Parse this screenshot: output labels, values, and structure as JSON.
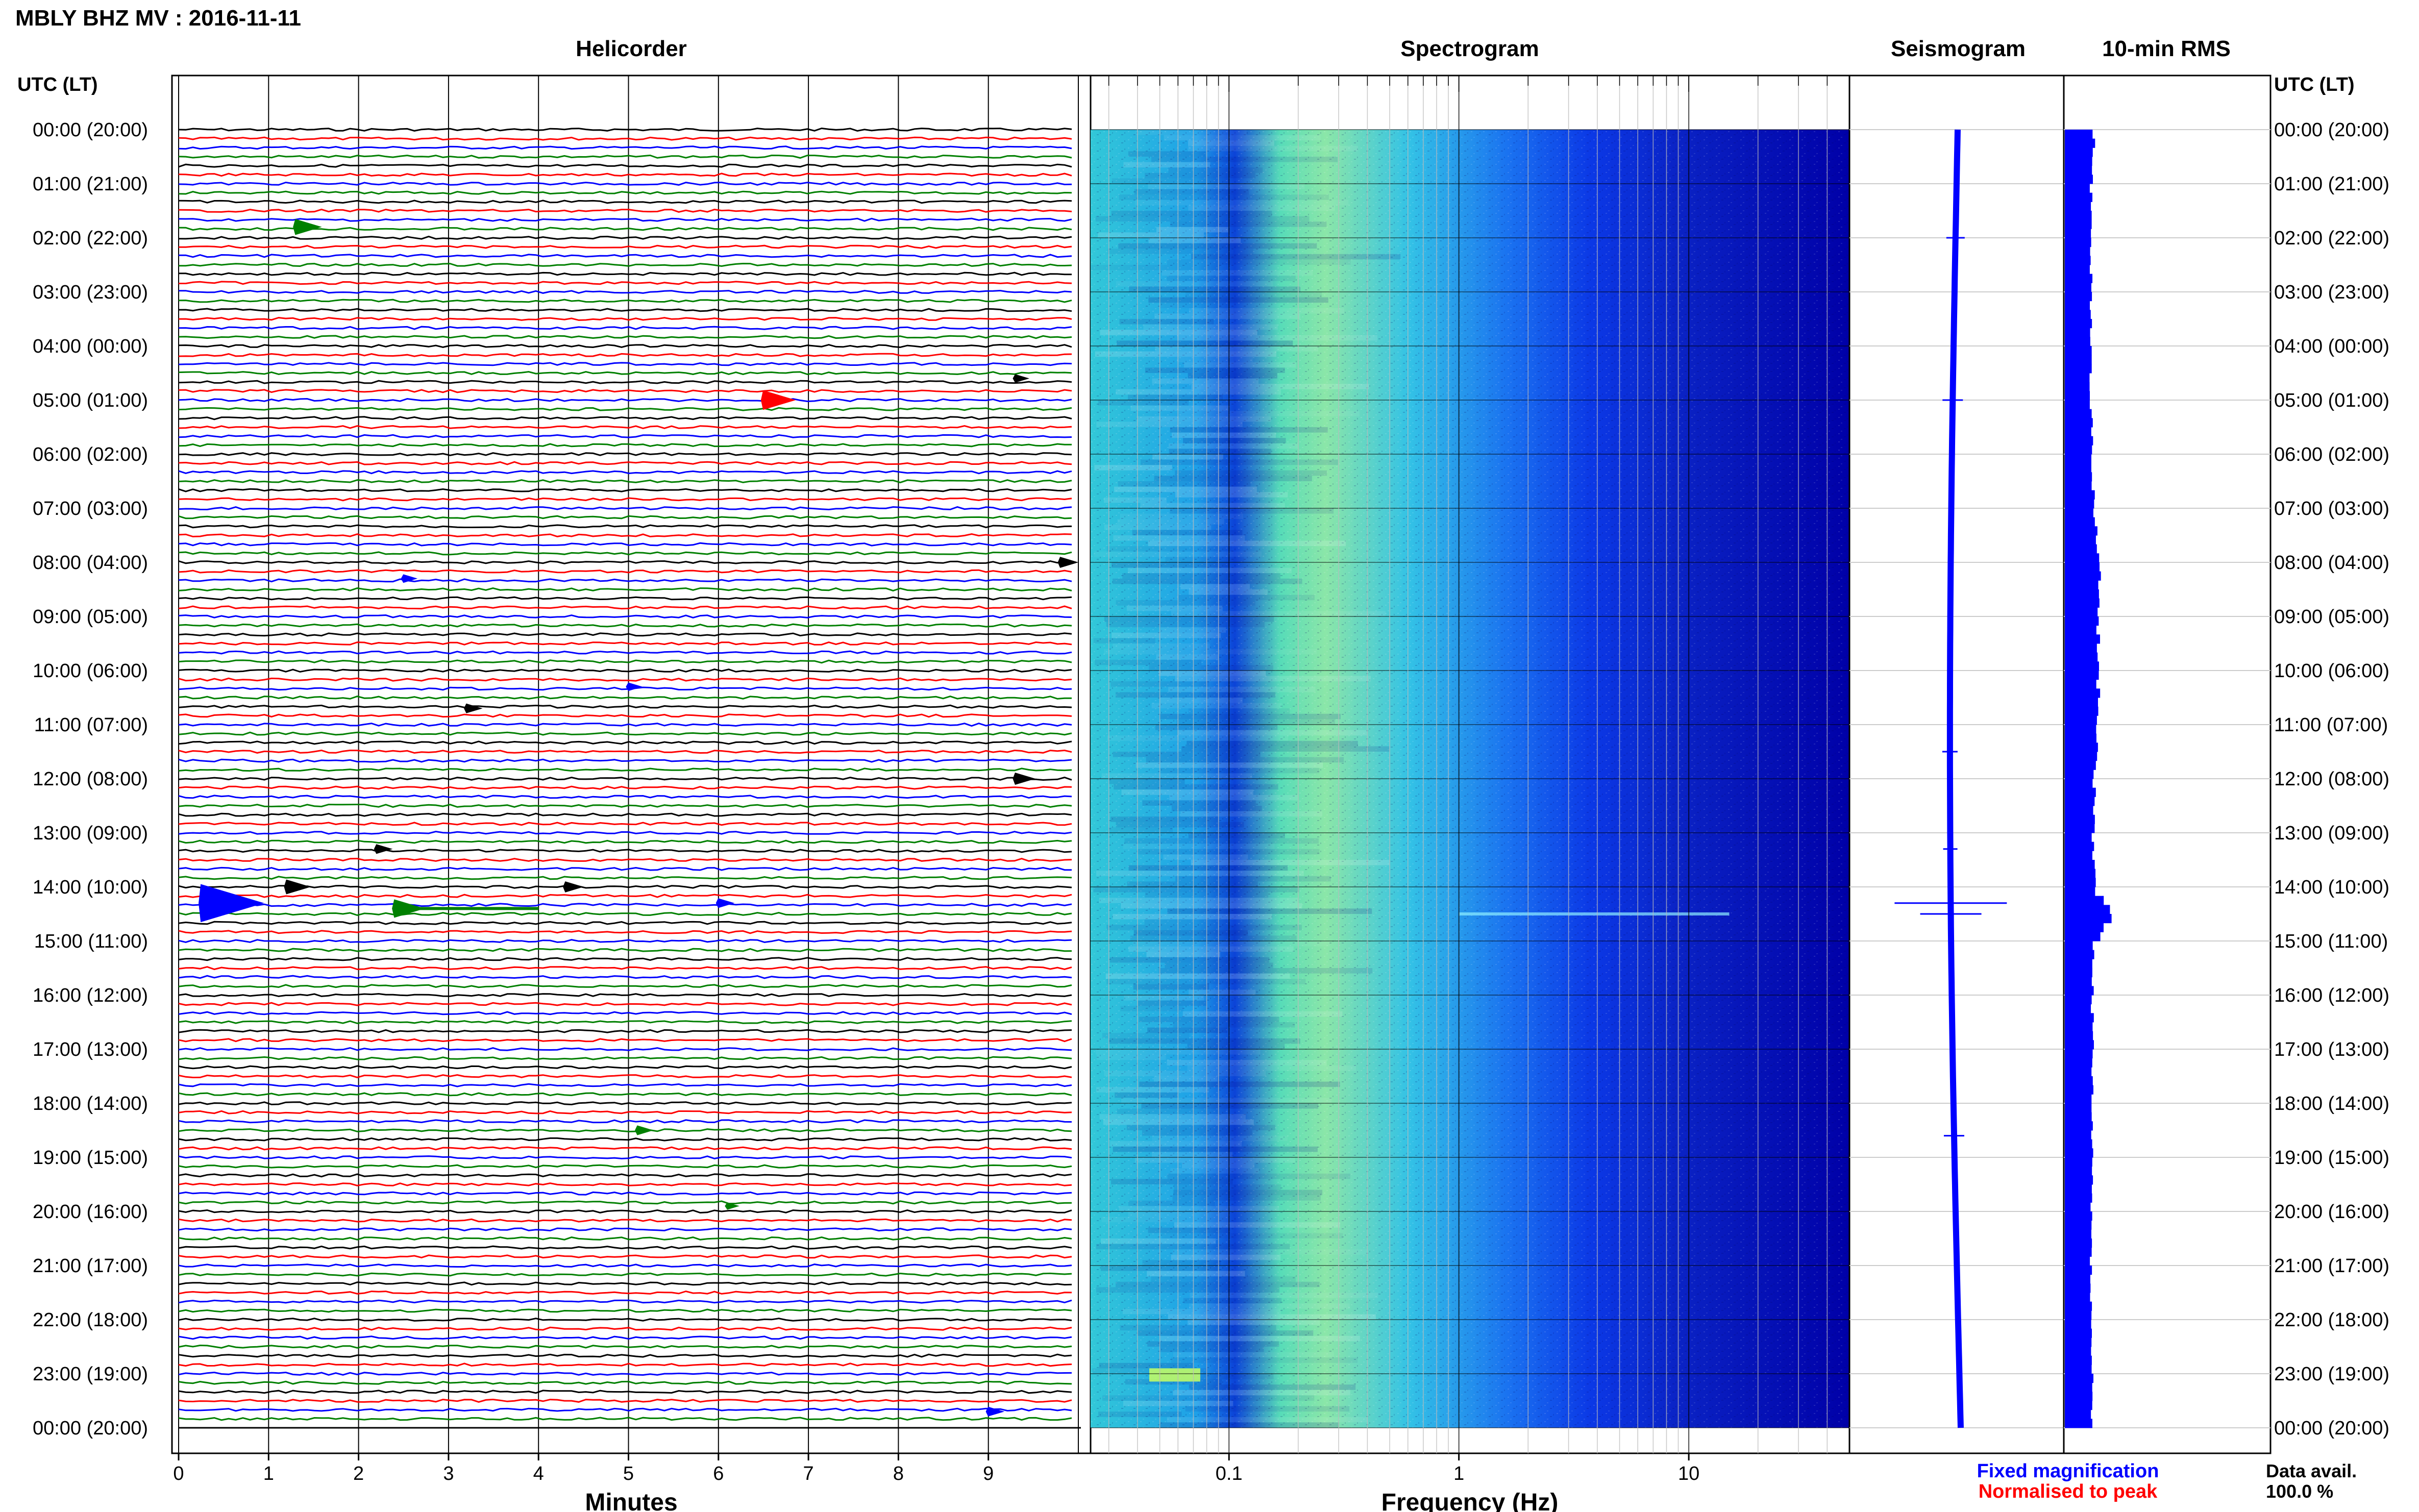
{
  "title": "MBLY BHZ MV : 2016-11-11",
  "panels": {
    "helicorder": "Helicorder",
    "spectrogram": "Spectrogram",
    "seismogram": "Seismogram",
    "rms": "10-min RMS"
  },
  "axis_left_label": "UTC (LT)",
  "axis_right_label": "UTC (LT)",
  "x_label_minutes": "Minutes",
  "x_label_frequency": "Frequency (Hz)",
  "legend": {
    "fixed": "Fixed magnification",
    "normalised": "Normalised to peak",
    "fixed_color": "#0000ff",
    "normalised_color": "#ff0000"
  },
  "data_avail_label": "Data avail.",
  "data_avail_value": "100.0 %",
  "chart_data": [
    {
      "type": "line",
      "name": "helicorder",
      "xlabel": "Minutes",
      "xlim": [
        0,
        10
      ],
      "x_ticks": [
        0,
        1,
        2,
        3,
        4,
        5,
        6,
        7,
        8,
        9
      ],
      "x_tick_labels": [
        "0",
        "1",
        "2",
        "3",
        "4",
        "5",
        "6",
        "7",
        "8",
        "9"
      ],
      "y_hours": [
        "00:00 (20:00)",
        "01:00 (21:00)",
        "02:00 (22:00)",
        "03:00 (23:00)",
        "04:00 (00:00)",
        "05:00 (01:00)",
        "06:00 (02:00)",
        "07:00 (03:00)",
        "08:00 (04:00)",
        "09:00 (05:00)",
        "10:00 (06:00)",
        "11:00 (07:00)",
        "12:00 (08:00)",
        "13:00 (09:00)",
        "14:00 (10:00)",
        "15:00 (11:00)",
        "16:00 (12:00)",
        "17:00 (13:00)",
        "18:00 (14:00)",
        "19:00 (15:00)",
        "20:00 (16:00)",
        "21:00 (17:00)",
        "22:00 (18:00)",
        "23:00 (19:00)",
        "00:00 (20:00)"
      ],
      "lines_per_hour": 6,
      "trace_colors": [
        "#000000",
        "#ff0000",
        "#0000ff",
        "#008000"
      ],
      "events": [
        {
          "hour": 1.8,
          "minute": 1.3,
          "amp": 1.2,
          "color": "#008000"
        },
        {
          "hour": 5.0,
          "minute": 6.5,
          "amp": 1.5,
          "color": "#ff0000"
        },
        {
          "hour": 4.6,
          "minute": 9.3,
          "amp": 0.6,
          "color": "#000000"
        },
        {
          "hour": 8.0,
          "minute": 9.8,
          "amp": 0.8,
          "color": "#000000"
        },
        {
          "hour": 8.3,
          "minute": 2.5,
          "amp": 0.6,
          "color": "#0000ff"
        },
        {
          "hour": 10.3,
          "minute": 5.0,
          "amp": 0.6,
          "color": "#0000ff"
        },
        {
          "hour": 10.7,
          "minute": 3.2,
          "amp": 0.7,
          "color": "#000000"
        },
        {
          "hour": 12.0,
          "minute": 9.3,
          "amp": 0.9,
          "color": "#000000"
        },
        {
          "hour": 13.3,
          "minute": 2.2,
          "amp": 0.7,
          "color": "#000000"
        },
        {
          "hour": 14.0,
          "minute": 1.2,
          "amp": 1.1,
          "color": "#000000"
        },
        {
          "hour": 14.0,
          "minute": 4.3,
          "amp": 0.8,
          "color": "#000000"
        },
        {
          "hour": 14.3,
          "minute": 0.25,
          "amp": 3.0,
          "color": "#0000ff"
        },
        {
          "hour": 14.4,
          "minute": 2.4,
          "amp": 1.4,
          "color": "#008000"
        },
        {
          "hour": 14.3,
          "minute": 6.0,
          "amp": 0.7,
          "color": "#0000ff"
        },
        {
          "hour": 18.5,
          "minute": 5.1,
          "amp": 0.7,
          "color": "#008000"
        },
        {
          "hour": 19.9,
          "minute": 6.1,
          "amp": 0.5,
          "color": "#008000"
        },
        {
          "hour": 23.7,
          "minute": 9.0,
          "amp": 0.7,
          "color": "#0000ff"
        }
      ]
    },
    {
      "type": "heatmap",
      "name": "spectrogram",
      "xlabel": "Frequency (Hz)",
      "x_scale": "log",
      "xlim": [
        0.025,
        50
      ],
      "x_ticks": [
        0.1,
        1,
        10
      ],
      "x_tick_labels": [
        "0.1",
        "1",
        "10"
      ],
      "ylim_hours": [
        0,
        24
      ]
    },
    {
      "type": "line",
      "name": "seismogram",
      "ylim_hours": [
        0,
        24
      ],
      "color": "#0000ff"
    },
    {
      "type": "bar",
      "name": "rms",
      "ylim_hours": [
        0,
        24
      ],
      "color": "#0000ff",
      "bins_per_hour": 6,
      "relative_rms_profile": [
        [
          0,
          0.62
        ],
        [
          1,
          0.55
        ],
        [
          2,
          0.55
        ],
        [
          3,
          0.56
        ],
        [
          4,
          0.55
        ],
        [
          5,
          0.55
        ],
        [
          6,
          0.58
        ],
        [
          7,
          0.62
        ],
        [
          8,
          0.72
        ],
        [
          9,
          0.7
        ],
        [
          10,
          0.7
        ],
        [
          11,
          0.7
        ],
        [
          12,
          0.62
        ],
        [
          13,
          0.6
        ],
        [
          14,
          0.65
        ],
        [
          14.33,
          1.0
        ],
        [
          14.5,
          0.95
        ],
        [
          15,
          0.6
        ],
        [
          16,
          0.58
        ],
        [
          17,
          0.58
        ],
        [
          18,
          0.56
        ],
        [
          19,
          0.58
        ],
        [
          20,
          0.56
        ],
        [
          21,
          0.56
        ],
        [
          22,
          0.55
        ],
        [
          23,
          0.58
        ],
        [
          24,
          0.58
        ]
      ]
    }
  ]
}
